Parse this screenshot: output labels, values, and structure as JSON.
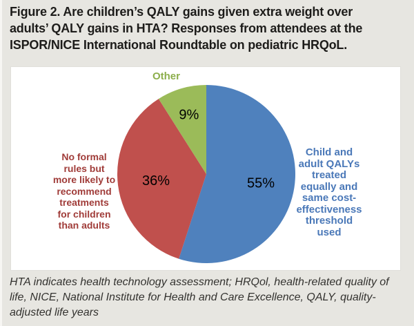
{
  "figure": {
    "title_lines": [
      "Figure 2. Are children’s QALY gains given extra weight over",
      "adults’ QALY gains in HTA? Responses from attendees at the",
      "ISPOR/NICE International Roundtable on pediatric HRQoL."
    ],
    "footnote_lines": [
      "HTA indicates health technology assessment; HRQol, health-related quality of",
      "life, NICE, National Institute for Health and Care Excellence, QALY, quality-",
      "adjusted life years"
    ]
  },
  "chart_data": {
    "type": "pie",
    "title": "Figure 2. Are children’s QALY gains given extra weight over adults’ QALY gains in HTA? Responses from attendees at the ISPOR/NICE International Roundtable on pediatric HRQoL.",
    "categories": [
      "Child and adult QALYs treated equally and same cost-effectiveness threshold used",
      "No formal rules but more likely to recommend treatments for children than adults",
      "Other"
    ],
    "values": [
      55,
      36,
      9
    ],
    "data_labels": [
      "55%",
      "36%",
      "9%"
    ],
    "colors": [
      "#4F81BD",
      "#C0504D",
      "#9BBB59"
    ],
    "category_label_colors": [
      "#4A78B8",
      "#A03C39",
      "#8CAE4B"
    ],
    "slice_names": [
      "child-adult-qalys-equal",
      "no-formal-rules",
      "other"
    ],
    "start_angle_deg": 0,
    "direction": "clockwise",
    "legend_position": "none",
    "labels_outside": true
  },
  "callouts": {
    "child_adult_equal": {
      "lines": [
        "Child and",
        "adult QALYs",
        "treated",
        "equally and",
        "same cost-",
        "effectiveness",
        "threshold",
        "used"
      ]
    },
    "no_formal_rules": {
      "lines": [
        "No formal",
        "rules but",
        "more likely to",
        "recommend",
        "treatments",
        "for children",
        "than adults"
      ]
    },
    "other": {
      "lines": [
        "Other"
      ]
    }
  }
}
